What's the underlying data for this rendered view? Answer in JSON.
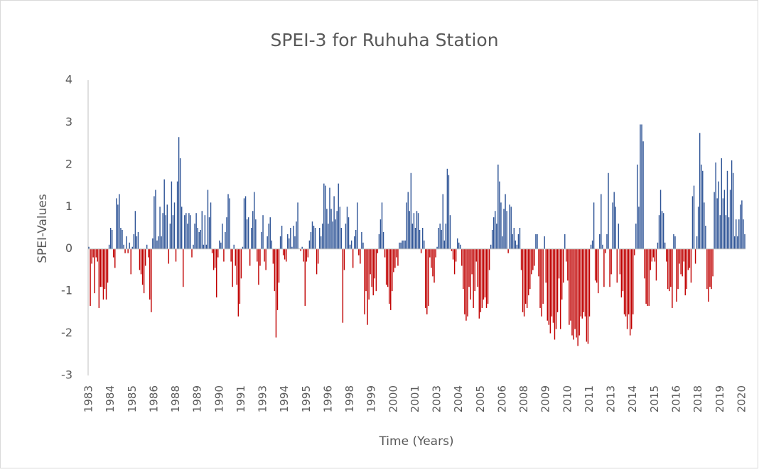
{
  "chart_data": {
    "type": "bar",
    "title": "SPEI-3 for Ruhuha Station",
    "x_label": "Time (Years)",
    "y_label": "SPEI-Values",
    "positive_color": "#2f5597",
    "negative_color": "#c00000",
    "ylim": [
      -3,
      4
    ],
    "yticks": [
      -3,
      -2,
      -1,
      0,
      1,
      2,
      3,
      4
    ],
    "grid": false,
    "categories": [
      "1983",
      null,
      null,
      null,
      null,
      null,
      null,
      null,
      null,
      null,
      null,
      null,
      null,
      null,
      null,
      "1984",
      null,
      null,
      null,
      null,
      null,
      null,
      null,
      null,
      null,
      null,
      null,
      null,
      null,
      null,
      "1985",
      null,
      null,
      null,
      null,
      null,
      null,
      null,
      null,
      null,
      null,
      null,
      null,
      null,
      null,
      "1986",
      null,
      null,
      null,
      null,
      null,
      null,
      null,
      null,
      null,
      null,
      null,
      null,
      null,
      null,
      "1988",
      null,
      null,
      null,
      null,
      null,
      null,
      null,
      null,
      null,
      null,
      null,
      null,
      null,
      null,
      "1989",
      null,
      null,
      null,
      null,
      null,
      null,
      null,
      null,
      null,
      null,
      null,
      null,
      null,
      null,
      "1990",
      null,
      null,
      null,
      null,
      null,
      null,
      null,
      null,
      null,
      null,
      null,
      null,
      null,
      null,
      "1991",
      null,
      null,
      null,
      null,
      null,
      null,
      null,
      null,
      null,
      null,
      null,
      null,
      null,
      null,
      "1993",
      null,
      null,
      null,
      null,
      null,
      null,
      null,
      null,
      null,
      null,
      null,
      null,
      null,
      null,
      "1994",
      null,
      null,
      null,
      null,
      null,
      null,
      null,
      null,
      null,
      null,
      null,
      null,
      null,
      null,
      "1995",
      null,
      null,
      null,
      null,
      null,
      null,
      null,
      null,
      null,
      null,
      null,
      null,
      null,
      null,
      "1996",
      null,
      null,
      null,
      null,
      null,
      null,
      null,
      null,
      null,
      null,
      null,
      null,
      null,
      null,
      "1998",
      null,
      null,
      null,
      null,
      null,
      null,
      null,
      null,
      null,
      null,
      null,
      null,
      null,
      null,
      "1999",
      null,
      null,
      null,
      null,
      null,
      null,
      null,
      null,
      null,
      null,
      null,
      null,
      null,
      null,
      "2000",
      null,
      null,
      null,
      null,
      null,
      null,
      null,
      null,
      null,
      null,
      null,
      null,
      null,
      null,
      "2001",
      null,
      null,
      null,
      null,
      null,
      null,
      null,
      null,
      null,
      null,
      null,
      null,
      null,
      null,
      "2003",
      null,
      null,
      null,
      null,
      null,
      null,
      null,
      null,
      null,
      null,
      null,
      null,
      null,
      null,
      "2004",
      null,
      null,
      null,
      null,
      null,
      null,
      null,
      null,
      null,
      null,
      null,
      null,
      null,
      null,
      "2005",
      null,
      null,
      null,
      null,
      null,
      null,
      null,
      null,
      null,
      null,
      null,
      null,
      null,
      null,
      "2006",
      null,
      null,
      null,
      null,
      null,
      null,
      null,
      null,
      null,
      null,
      null,
      null,
      null,
      null,
      "2008",
      null,
      null,
      null,
      null,
      null,
      null,
      null,
      null,
      null,
      null,
      null,
      null,
      null,
      null,
      "2009",
      null,
      null,
      null,
      null,
      null,
      null,
      null,
      null,
      null,
      null,
      null,
      null,
      null,
      null,
      "2010",
      null,
      null,
      null,
      null,
      null,
      null,
      null,
      null,
      null,
      null,
      null,
      null,
      null,
      null,
      "2011",
      null,
      null,
      null,
      null,
      null,
      null,
      null,
      null,
      null,
      null,
      null,
      null,
      null,
      null,
      "2013",
      null,
      null,
      null,
      null,
      null,
      null,
      null,
      null,
      null,
      null,
      null,
      null,
      null,
      null,
      "2014",
      null,
      null,
      null,
      null,
      null,
      null,
      null,
      null,
      null,
      null,
      null,
      null,
      null,
      null,
      "2015",
      null,
      null,
      null,
      null,
      null,
      null,
      null,
      null,
      null,
      null,
      null,
      null,
      null,
      null,
      "2016",
      null,
      null,
      null,
      null,
      null,
      null,
      null,
      null,
      null,
      null,
      null,
      null,
      null,
      null,
      "2018",
      null,
      null,
      null,
      null,
      null,
      null,
      null,
      null,
      null,
      null,
      null,
      null,
      null,
      null,
      "2019",
      null,
      null,
      null,
      null,
      null,
      null,
      null,
      null,
      null,
      null,
      null,
      null,
      null,
      null,
      "2020",
      null,
      null
    ],
    "values": [
      0.05,
      -1.35,
      -0.35,
      -0.2,
      -1.05,
      -0.2,
      -0.3,
      -1.4,
      -0.9,
      -0.9,
      -1.2,
      -0.95,
      -1.2,
      -0.8,
      0.1,
      0.5,
      0.45,
      -0.2,
      -0.45,
      1.2,
      1.05,
      1.3,
      0.5,
      0.45,
      0.1,
      -0.1,
      0.3,
      -0.1,
      0.15,
      -0.6,
      0.05,
      0.35,
      0.9,
      0.3,
      0.4,
      -0.5,
      -0.6,
      -0.85,
      -1.05,
      -0.4,
      0.1,
      -0.2,
      -1.2,
      -1.5,
      0.25,
      1.25,
      1.4,
      0.2,
      0.3,
      1.0,
      0.3,
      0.85,
      1.65,
      0.8,
      1.05,
      -0.35,
      0.6,
      1.6,
      0.8,
      1.1,
      -0.3,
      1.6,
      2.65,
      2.15,
      1.0,
      -0.9,
      0.8,
      0.85,
      0.6,
      0.85,
      0.8,
      -0.2,
      0.1,
      0.6,
      0.85,
      0.5,
      0.4,
      0.45,
      0.9,
      0.1,
      0.8,
      0.1,
      1.4,
      0.75,
      1.1,
      -0.1,
      -0.5,
      -0.45,
      -1.15,
      -0.2,
      0.2,
      0.15,
      0.6,
      -0.3,
      0.4,
      0.75,
      1.3,
      1.2,
      -0.3,
      -0.9,
      0.1,
      -0.4,
      -0.85,
      -1.6,
      -1.3,
      -0.7,
      0.05,
      1.2,
      1.25,
      0.7,
      0.75,
      -0.4,
      0.5,
      0.9,
      1.35,
      0.7,
      -0.3,
      -0.85,
      -0.4,
      0.4,
      0.8,
      -0.3,
      -0.5,
      0.3,
      0.6,
      0.75,
      0.2,
      -0.35,
      -1.0,
      -2.1,
      -1.45,
      -0.8,
      0.3,
      0.55,
      -0.15,
      -0.25,
      -0.3,
      0.35,
      0.25,
      0.5,
      0.05,
      0.55,
      0.3,
      0.65,
      1.1,
      0.0,
      -0.05,
      0.05,
      -0.3,
      -1.35,
      -0.3,
      -0.2,
      0.2,
      0.4,
      0.65,
      0.55,
      0.5,
      -0.6,
      -0.35,
      0.5,
      0.3,
      0.6,
      1.55,
      1.5,
      0.95,
      0.6,
      1.45,
      0.95,
      0.65,
      1.25,
      0.7,
      0.9,
      1.55,
      1.0,
      0.5,
      -1.75,
      -0.5,
      0.6,
      1.0,
      0.75,
      0.1,
      0.2,
      -0.45,
      0.3,
      0.45,
      1.1,
      -0.15,
      -0.35,
      0.4,
      0.15,
      -1.55,
      -1.0,
      -1.8,
      -1.2,
      -0.6,
      -0.9,
      -1.1,
      -0.7,
      -1.0,
      -0.1,
      0.35,
      0.7,
      1.1,
      0.4,
      -0.2,
      -0.85,
      -0.9,
      -1.3,
      -1.45,
      -1.0,
      -0.55,
      -0.45,
      -0.2,
      -0.4,
      0.15,
      0.15,
      0.2,
      0.2,
      0.2,
      1.1,
      1.35,
      0.9,
      1.8,
      0.6,
      0.85,
      0.5,
      0.9,
      0.85,
      0.45,
      -0.1,
      0.5,
      0.2,
      -1.4,
      -1.55,
      -1.35,
      -0.2,
      -0.45,
      -0.65,
      -0.8,
      -0.2,
      0.05,
      0.5,
      0.6,
      0.45,
      1.3,
      0.2,
      0.6,
      1.9,
      1.75,
      0.8,
      -0.05,
      -0.25,
      -0.6,
      -0.3,
      0.25,
      0.15,
      0.1,
      -0.4,
      -0.95,
      -1.55,
      -1.7,
      -1.6,
      -0.9,
      -1.2,
      -0.6,
      -1.4,
      -1.0,
      -0.3,
      -0.9,
      -1.65,
      -1.5,
      -1.4,
      -1.2,
      -1.15,
      -1.4,
      -1.3,
      -0.5,
      0.1,
      0.45,
      0.75,
      0.9,
      0.6,
      2.0,
      1.6,
      1.1,
      0.3,
      0.95,
      1.3,
      0.9,
      -0.1,
      1.05,
      1.0,
      0.35,
      0.5,
      0.2,
      0.1,
      0.35,
      0.5,
      -0.5,
      -1.5,
      -1.6,
      -1.3,
      -1.4,
      -1.1,
      -0.95,
      -0.6,
      -0.5,
      -0.4,
      0.35,
      0.35,
      -0.65,
      -1.4,
      -1.6,
      -1.3,
      0.3,
      -0.8,
      -1.7,
      -1.8,
      -2.0,
      -1.6,
      -1.75,
      -2.15,
      -1.9,
      -1.5,
      -0.7,
      -1.9,
      -1.2,
      -0.8,
      0.35,
      -0.3,
      -0.75,
      -1.8,
      -1.7,
      -2.05,
      -2.15,
      -1.9,
      -2.1,
      -2.3,
      -2.05,
      -1.6,
      -1.65,
      -1.5,
      -1.6,
      -2.2,
      -2.25,
      -1.6,
      0.1,
      0.2,
      1.1,
      -0.75,
      -0.8,
      -1.05,
      0.35,
      1.3,
      0.1,
      -0.9,
      -0.1,
      0.35,
      1.8,
      -0.9,
      -0.6,
      1.1,
      1.35,
      1.0,
      -0.8,
      0.6,
      -0.6,
      -1.15,
      -1.0,
      -1.55,
      -1.6,
      -1.9,
      -1.55,
      -2.05,
      -1.9,
      -1.55,
      -0.15,
      0.6,
      2.0,
      1.0,
      2.95,
      2.95,
      2.55,
      -0.7,
      -1.3,
      -1.35,
      -1.35,
      -0.5,
      -0.3,
      -0.2,
      -0.3,
      -0.75,
      0.15,
      0.8,
      1.4,
      0.9,
      0.85,
      0.15,
      -0.3,
      -0.95,
      -1.0,
      -0.9,
      -1.4,
      0.35,
      0.3,
      -1.25,
      -0.95,
      -0.35,
      -0.6,
      -0.65,
      -0.3,
      -1.1,
      -0.95,
      -0.5,
      -0.45,
      -0.8,
      1.25,
      1.5,
      -0.35,
      0.3,
      1.0,
      2.75,
      2.0,
      1.85,
      1.1,
      0.55,
      -0.95,
      -1.25,
      -0.9,
      -0.95,
      -0.65,
      1.35,
      2.05,
      1.2,
      1.6,
      0.8,
      2.15,
      1.2,
      1.4,
      0.8,
      1.85,
      0.75,
      1.4,
      2.1,
      1.8,
      0.3,
      0.7,
      0.3,
      0.7,
      1.05,
      1.15,
      0.7,
      0.35
    ]
  }
}
